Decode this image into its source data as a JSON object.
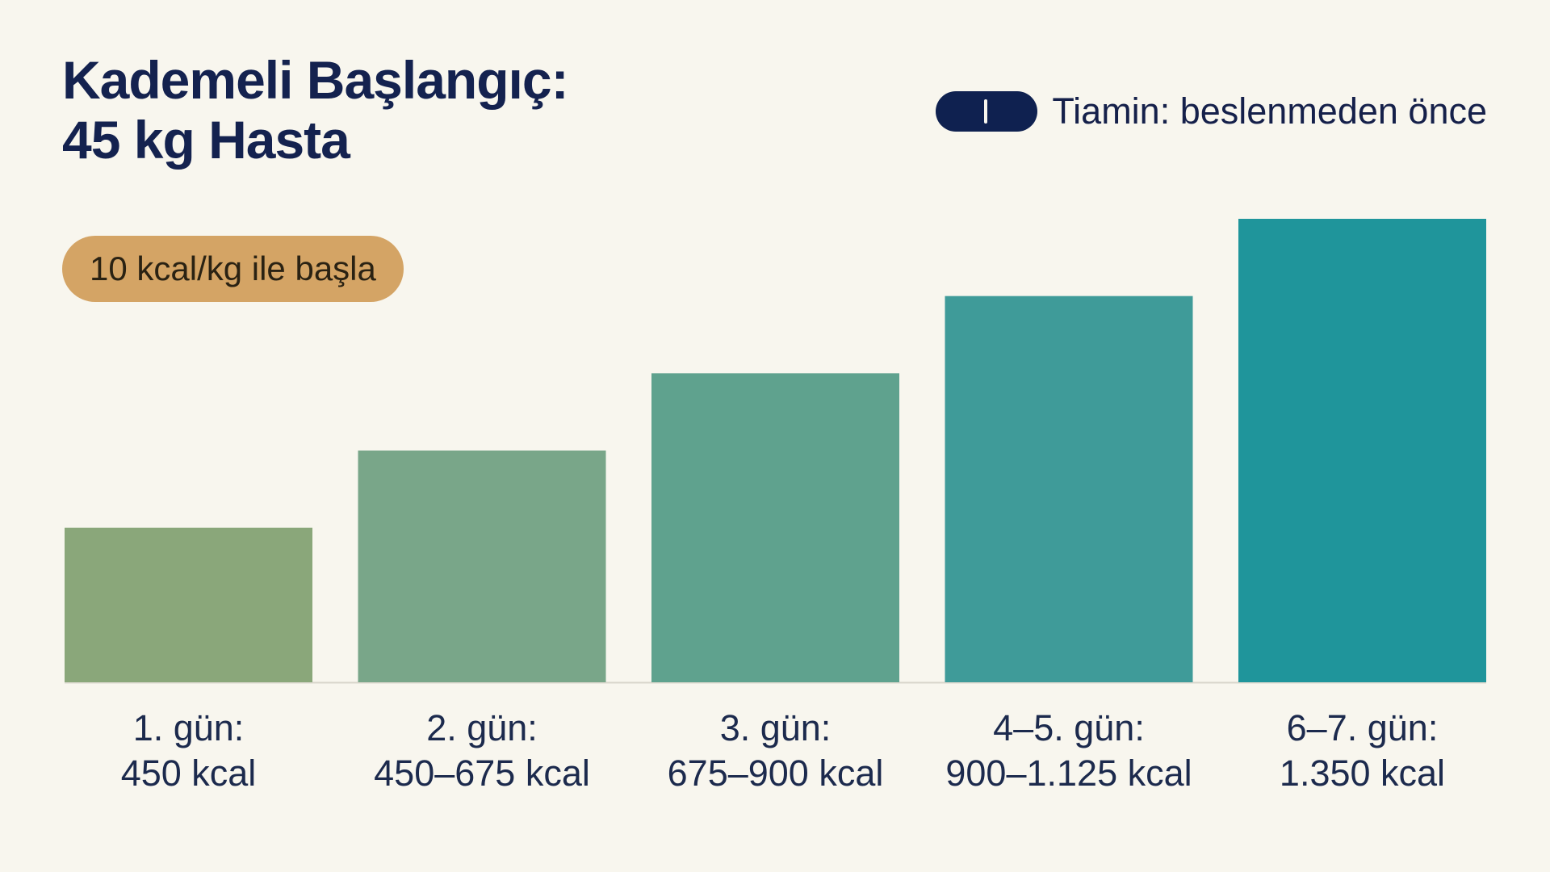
{
  "title": {
    "line1": "Kademeli Başlangıç:",
    "line2": "45 kg Hasta"
  },
  "legend": {
    "icon": "capsule-icon",
    "label": "Tiamin: beslenmeden önce"
  },
  "badge": {
    "label": "10 kcal/kg ile başla"
  },
  "colors": {
    "background": "#f8f6ee",
    "title": "#14224f",
    "badge": "#d4a465",
    "pill": "#0f2150",
    "bars": [
      "#8aa77a",
      "#79a689",
      "#5fa28e",
      "#3f9b99",
      "#1f959b"
    ]
  },
  "chart_data": {
    "type": "bar",
    "categories": [
      "1. gün:",
      "2. gün:",
      "3. gün:",
      "4–5. gün:",
      "6–7. gün:"
    ],
    "value_labels": [
      "450 kcal",
      "450–675 kcal",
      "675–900 kcal",
      "900–1.125 kcal",
      "1.350 kcal"
    ],
    "values": [
      450,
      675,
      900,
      1125,
      1350
    ],
    "xlabel": "",
    "ylabel": "",
    "ylim": [
      0,
      1350
    ],
    "grid": false
  }
}
